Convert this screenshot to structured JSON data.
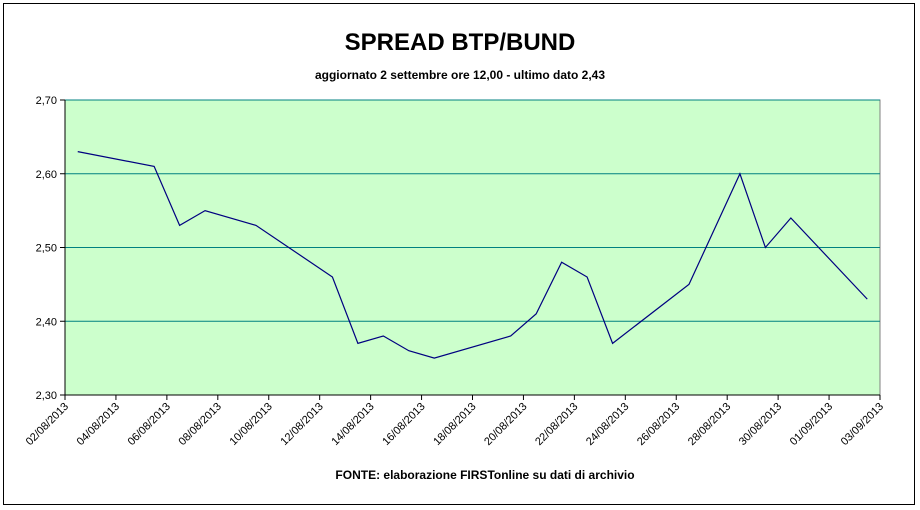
{
  "chart_data": {
    "type": "line",
    "title": "SPREAD BTP/BUND",
    "subtitle": "aggiornato 2 settembre ore 12,00 - ultimo dato 2,43",
    "source": "FONTE: elaborazione FIRSTonline su dati di archivio",
    "x": [
      "02/08/2013",
      "05/08/2013",
      "06/08/2013",
      "07/08/2013",
      "09/08/2013",
      "12/08/2013",
      "13/08/2013",
      "14/08/2013",
      "15/08/2013",
      "16/08/2013",
      "19/08/2013",
      "20/08/2013",
      "21/08/2013",
      "22/08/2013",
      "23/08/2013",
      "26/08/2013",
      "28/08/2013",
      "29/08/2013",
      "30/08/2013",
      "02/09/2013"
    ],
    "series": [
      {
        "color": "#000080",
        "values": [
          2.63,
          2.61,
          2.53,
          2.55,
          2.53,
          2.46,
          2.37,
          2.38,
          2.36,
          2.35,
          2.38,
          2.41,
          2.48,
          2.46,
          2.37,
          2.45,
          2.6,
          2.5,
          2.54,
          2.43
        ]
      }
    ],
    "xlim": [
      "02/08/2013",
      "03/09/2013"
    ],
    "xticks": [
      "02/08/2013",
      "04/08/2013",
      "06/08/2013",
      "08/08/2013",
      "10/08/2013",
      "12/08/2013",
      "14/08/2013",
      "16/08/2013",
      "18/08/2013",
      "20/08/2013",
      "22/08/2013",
      "24/08/2013",
      "26/08/2013",
      "28/08/2013",
      "30/08/2013",
      "01/09/2013",
      "03/09/2013"
    ],
    "ylim": [
      2.3,
      2.7
    ],
    "yticks": [
      {
        "value": 2.3,
        "label": "2,30"
      },
      {
        "value": 2.4,
        "label": "2,40"
      },
      {
        "value": 2.5,
        "label": "2,50"
      },
      {
        "value": 2.6,
        "label": "2,60"
      },
      {
        "value": 2.7,
        "label": "2,70"
      }
    ],
    "grid": true,
    "background": "#ccffcc",
    "grid_color": "#008080"
  }
}
